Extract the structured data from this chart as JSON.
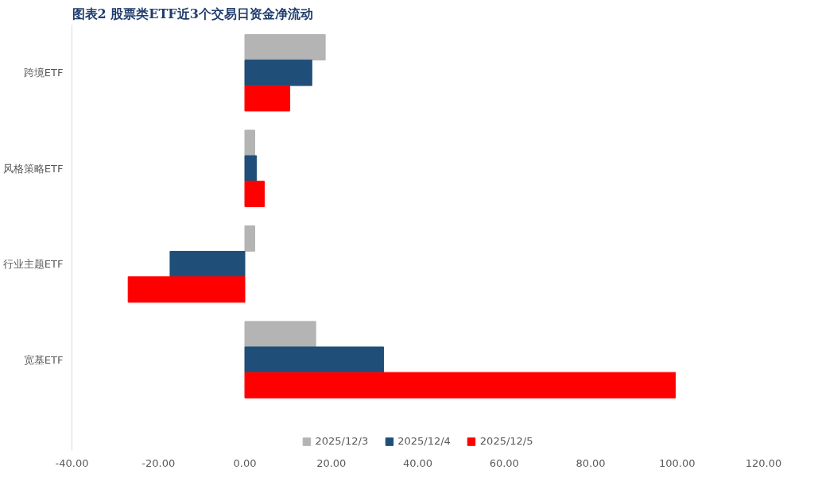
{
  "chart_data": {
    "type": "bar",
    "orientation": "horizontal",
    "title": "图表2 股票类ETF近3个交易日资金净流动",
    "categories": [
      "跨境ETF",
      "风格策略ETF",
      "行业主题ETF",
      "宽基ETF"
    ],
    "series": [
      {
        "name": "2025/12/3",
        "color": "#b4b4b4",
        "values": [
          18.6,
          2.3,
          2.3,
          16.4
        ]
      },
      {
        "name": "2025/12/4",
        "color": "#1f4e79",
        "values": [
          15.5,
          2.7,
          -17.3,
          32.1
        ]
      },
      {
        "name": "2025/12/5",
        "color": "#ff0000",
        "values": [
          10.4,
          4.5,
          -27.0,
          99.6
        ]
      }
    ],
    "xlim": [
      -40,
      120
    ],
    "xticks": [
      {
        "value": -40,
        "label": "-40.00"
      },
      {
        "value": -20,
        "label": "-20.00"
      },
      {
        "value": 0,
        "label": "0.00"
      },
      {
        "value": 20,
        "label": "20.00"
      },
      {
        "value": 40,
        "label": "40.00"
      },
      {
        "value": 60,
        "label": "60.00"
      },
      {
        "value": 80,
        "label": "80.00"
      },
      {
        "value": 100,
        "label": "100.00"
      },
      {
        "value": 120,
        "label": "120.00"
      }
    ],
    "legend": "bottom",
    "grid": false
  }
}
